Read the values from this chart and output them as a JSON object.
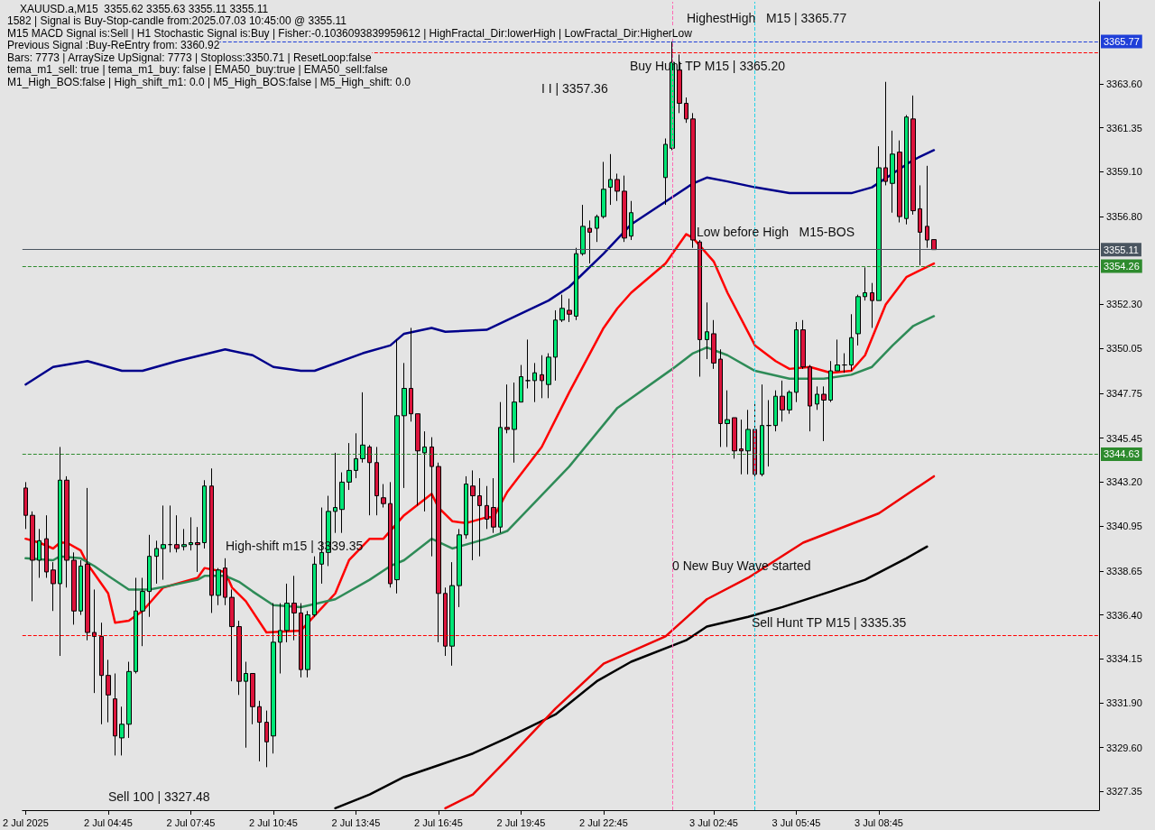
{
  "chart_data": {
    "type": "candlestick",
    "title": "XAUUSD.a,M15  3355.62 3355.63 3355.11 3355.11",
    "x": [
      "2025-07-02T01:45",
      "2025-07-02T02:00",
      "2025-07-02T02:15",
      "2025-07-02T02:30",
      "2025-07-02T02:45",
      "2025-07-02T03:00",
      "2025-07-02T03:15",
      "2025-07-02T03:30",
      "2025-07-02T03:45",
      "2025-07-02T04:00",
      "2025-07-02T04:15",
      "2025-07-02T04:30",
      "2025-07-02T04:45",
      "2025-07-02T05:00",
      "2025-07-02T05:15",
      "2025-07-02T05:30",
      "2025-07-02T05:45",
      "2025-07-02T06:00",
      "2025-07-02T06:15",
      "2025-07-02T06:30",
      "2025-07-02T06:45",
      "2025-07-02T07:00",
      "2025-07-02T07:15",
      "2025-07-02T07:30",
      "2025-07-02T07:45",
      "2025-07-02T08:00",
      "2025-07-02T08:15",
      "2025-07-02T08:30",
      "2025-07-02T08:45",
      "2025-07-02T09:00",
      "2025-07-02T09:15",
      "2025-07-02T09:30",
      "2025-07-02T09:45",
      "2025-07-02T10:00",
      "2025-07-02T10:15",
      "2025-07-02T10:30",
      "2025-07-02T10:45",
      "2025-07-02T11:00",
      "2025-07-02T11:15",
      "2025-07-02T11:30",
      "2025-07-02T11:45",
      "2025-07-02T12:00",
      "2025-07-02T12:15",
      "2025-07-02T12:30",
      "2025-07-02T12:45",
      "2025-07-02T13:00",
      "2025-07-02T13:15",
      "2025-07-02T13:30",
      "2025-07-02T13:45",
      "2025-07-02T14:00",
      "2025-07-02T14:15",
      "2025-07-02T14:30",
      "2025-07-02T14:45",
      "2025-07-02T15:00",
      "2025-07-02T15:15",
      "2025-07-02T15:30",
      "2025-07-02T15:45",
      "2025-07-02T16:00",
      "2025-07-02T16:15",
      "2025-07-02T16:30",
      "2025-07-02T16:45",
      "2025-07-02T17:00",
      "2025-07-02T17:15",
      "2025-07-02T17:30",
      "2025-07-02T17:45",
      "2025-07-02T18:00",
      "2025-07-02T18:15",
      "2025-07-02T18:30",
      "2025-07-02T18:45",
      "2025-07-02T19:00",
      "2025-07-02T19:15",
      "2025-07-02T19:30",
      "2025-07-02T19:45",
      "2025-07-02T20:00",
      "2025-07-02T20:15",
      "2025-07-02T20:30",
      "2025-07-02T20:45",
      "2025-07-02T21:00",
      "2025-07-02T21:15",
      "2025-07-02T21:30",
      "2025-07-02T21:45",
      "2025-07-02T22:00",
      "2025-07-02T22:15",
      "2025-07-02T22:30",
      "2025-07-02T22:45",
      "2025-07-02T23:00",
      "2025-07-02T23:15",
      "2025-07-02T23:30",
      "2025-07-02T23:45",
      "2025-07-03T01:00",
      "2025-07-03T01:15",
      "2025-07-03T01:30",
      "2025-07-03T01:45",
      "2025-07-03T02:00",
      "2025-07-03T02:15",
      "2025-07-03T02:30",
      "2025-07-03T02:45",
      "2025-07-03T03:00",
      "2025-07-03T03:15",
      "2025-07-03T03:30",
      "2025-07-03T03:45",
      "2025-07-03T04:00",
      "2025-07-03T04:15",
      "2025-07-03T04:30",
      "2025-07-03T04:45",
      "2025-07-03T05:00",
      "2025-07-03T05:15",
      "2025-07-03T05:30",
      "2025-07-03T05:45",
      "2025-07-03T06:00",
      "2025-07-03T06:15",
      "2025-07-03T06:30",
      "2025-07-03T06:45",
      "2025-07-03T07:00",
      "2025-07-03T07:15",
      "2025-07-03T07:30",
      "2025-07-03T07:45",
      "2025-07-03T08:00",
      "2025-07-03T08:15",
      "2025-07-03T08:30",
      "2025-07-03T08:45",
      "2025-07-03T09:00",
      "2025-07-03T09:15",
      "2025-07-03T09:30",
      "2025-07-03T09:45",
      "2025-07-03T10:00",
      "2025-07-03T10:15",
      "2025-07-03T10:30",
      "2025-07-03T10:45"
    ],
    "ohlc": [
      [
        3342.9,
        3343.2,
        3340.8,
        3341.5
      ],
      [
        3341.5,
        3341.7,
        3337.1,
        3339.2
      ],
      [
        3339.2,
        3340.8,
        3338.3,
        3340.2
      ],
      [
        3340.3,
        3341.5,
        3338.3,
        3338.6
      ],
      [
        3338.7,
        3339.1,
        3336.6,
        3338.0
      ],
      [
        3338.0,
        3345.0,
        3334.3,
        3343.3
      ],
      [
        3343.3,
        3343.5,
        3337.8,
        3339.2
      ],
      [
        3339.2,
        3339.6,
        3335.9,
        3336.6
      ],
      [
        3336.6,
        3339.2,
        3336.4,
        3338.9
      ],
      [
        3339.0,
        3342.9,
        3335.1,
        3335.5
      ],
      [
        3335.5,
        3337.7,
        3332.4,
        3335.3
      ],
      [
        3335.3,
        3336.0,
        3330.8,
        3333.3
      ],
      [
        3333.3,
        3334.1,
        3330.9,
        3332.3
      ],
      [
        3332.1,
        3333.4,
        3329.2,
        3330.2
      ],
      [
        3330.1,
        3331.7,
        3329.2,
        3330.8
      ],
      [
        3330.8,
        3334.0,
        3330.1,
        3333.5
      ],
      [
        3333.5,
        3338.3,
        3333.4,
        3336.6
      ],
      [
        3336.6,
        3338.3,
        3334.8,
        3337.6
      ],
      [
        3337.6,
        3340.5,
        3336.3,
        3339.4
      ],
      [
        3339.4,
        3340.2,
        3338.0,
        3339.8
      ],
      [
        3339.8,
        3342.0,
        3338.2,
        3340.0
      ],
      [
        3340.0,
        3342.0,
        3339.6,
        3340.0
      ],
      [
        3340.0,
        3341.5,
        3339.6,
        3339.8
      ],
      [
        3339.9,
        3340.8,
        3339.7,
        3340.0
      ],
      [
        3340.0,
        3341.4,
        3339.7,
        3340.1
      ],
      [
        3340.1,
        3340.9,
        3338.6,
        3340.0
      ],
      [
        3340.1,
        3343.3,
        3339.8,
        3343.0
      ],
      [
        3343.0,
        3343.9,
        3336.5,
        3337.4
      ],
      [
        3337.4,
        3338.8,
        3336.9,
        3338.7
      ],
      [
        3338.8,
        3339.3,
        3336.9,
        3337.3
      ],
      [
        3337.3,
        3337.7,
        3333.0,
        3335.8
      ],
      [
        3335.8,
        3336.1,
        3332.3,
        3333.0
      ],
      [
        3333.0,
        3334.0,
        3329.6,
        3333.4
      ],
      [
        3333.4,
        3333.4,
        3330.8,
        3331.7
      ],
      [
        3331.7,
        3332.0,
        3328.9,
        3330.9
      ],
      [
        3330.9,
        3331.5,
        3328.6,
        3329.9
      ],
      [
        3330.2,
        3337.0,
        3329.3,
        3335.0
      ],
      [
        3335.0,
        3337.0,
        3333.4,
        3335.6
      ],
      [
        3335.6,
        3338.0,
        3335.0,
        3337.0
      ],
      [
        3337.0,
        3338.4,
        3335.1,
        3336.5
      ],
      [
        3336.5,
        3337.0,
        3333.2,
        3333.6
      ],
      [
        3333.6,
        3336.6,
        3333.2,
        3336.4
      ],
      [
        3336.4,
        3339.4,
        3336.3,
        3339.0
      ],
      [
        3339.0,
        3341.9,
        3338.0,
        3339.6
      ],
      [
        3339.6,
        3342.5,
        3338.9,
        3341.7
      ],
      [
        3341.7,
        3344.7,
        3340.6,
        3341.9
      ],
      [
        3341.8,
        3343.7,
        3340.6,
        3343.2
      ],
      [
        3343.2,
        3345.2,
        3342.8,
        3343.8
      ],
      [
        3343.8,
        3345.7,
        3343.4,
        3344.4
      ],
      [
        3344.4,
        3347.8,
        3344.2,
        3345.1
      ],
      [
        3345.0,
        3345.1,
        3341.5,
        3344.2
      ],
      [
        3344.2,
        3345.0,
        3341.5,
        3342.5
      ],
      [
        3342.4,
        3343.1,
        3341.9,
        3342.1
      ],
      [
        3342.1,
        3343.2,
        3337.8,
        3338.0
      ],
      [
        3338.2,
        3350.5,
        3337.5,
        3346.6
      ],
      [
        3346.6,
        3349.3,
        3342.9,
        3348.0
      ],
      [
        3348.0,
        3351.1,
        3346.3,
        3346.7
      ],
      [
        3346.7,
        3346.7,
        3342.0,
        3344.8
      ],
      [
        3344.7,
        3345.8,
        3341.7,
        3345.0
      ],
      [
        3345.0,
        3345.5,
        3339.4,
        3344.0
      ],
      [
        3344.0,
        3344.2,
        3335.0,
        3337.5
      ],
      [
        3337.5,
        3337.8,
        3334.3,
        3334.8
      ],
      [
        3334.8,
        3339.1,
        3333.8,
        3337.9
      ],
      [
        3337.9,
        3340.8,
        3336.8,
        3340.5
      ],
      [
        3340.5,
        3343.5,
        3340.3,
        3343.1
      ],
      [
        3343.0,
        3343.8,
        3339.2,
        3342.5
      ],
      [
        3342.5,
        3343.4,
        3339.4,
        3342.0
      ],
      [
        3342.0,
        3343.0,
        3340.8,
        3341.3
      ],
      [
        3341.9,
        3343.4,
        3340.6,
        3340.9
      ],
      [
        3340.9,
        3347.3,
        3340.6,
        3346.0
      ],
      [
        3346.0,
        3348.2,
        3345.7,
        3345.9
      ],
      [
        3345.9,
        3348.3,
        3344.2,
        3347.3
      ],
      [
        3347.3,
        3349.2,
        3347.3,
        3348.6
      ],
      [
        3348.4,
        3350.5,
        3348.0,
        3348.4
      ],
      [
        3348.4,
        3349.3,
        3347.3,
        3348.8
      ],
      [
        3348.7,
        3349.7,
        3347.5,
        3348.4
      ],
      [
        3348.2,
        3349.8,
        3347.5,
        3349.6
      ],
      [
        3349.6,
        3352.0,
        3348.4,
        3351.5
      ],
      [
        3351.5,
        3352.8,
        3351.4,
        3352.1
      ],
      [
        3352.0,
        3352.6,
        3351.4,
        3351.8
      ],
      [
        3351.7,
        3355.2,
        3351.5,
        3354.9
      ],
      [
        3354.9,
        3357.4,
        3354.8,
        3356.3
      ],
      [
        3356.2,
        3356.6,
        3354.4,
        3356.0
      ],
      [
        3356.2,
        3356.9,
        3355.5,
        3356.8
      ],
      [
        3356.8,
        3359.6,
        3356.7,
        3358.2
      ],
      [
        3358.3,
        3360.0,
        3357.4,
        3358.7
      ],
      [
        3358.7,
        3359.0,
        3357.6,
        3358.1
      ],
      [
        3358.1,
        3358.9,
        3355.5,
        3355.7
      ],
      [
        3355.8,
        3357.6,
        3355.6,
        3357.0
      ],
      [
        3358.8,
        3360.8,
        3357.4,
        3360.5
      ],
      [
        3360.3,
        3365.77,
        3360.2,
        3364.7
      ],
      [
        3364.3,
        3365.1,
        3362.1,
        3362.6
      ],
      [
        3362.6,
        3362.9,
        3361.6,
        3361.8
      ],
      [
        3361.8,
        3362.1,
        3355.2,
        3355.6
      ],
      [
        3355.5,
        3355.6,
        3348.6,
        3350.5
      ],
      [
        3350.5,
        3352.4,
        3349.5,
        3350.9
      ],
      [
        3350.8,
        3351.5,
        3349.0,
        3349.3
      ],
      [
        3349.5,
        3350.0,
        3345.0,
        3346.2
      ],
      [
        3346.2,
        3347.9,
        3345.0,
        3346.4
      ],
      [
        3346.5,
        3346.5,
        3344.4,
        3344.8
      ],
      [
        3344.9,
        3346.4,
        3343.6,
        3344.8
      ],
      [
        3344.8,
        3346.9,
        3343.6,
        3345.9
      ],
      [
        3345.9,
        3347.3,
        3343.5,
        3343.6
      ],
      [
        3343.6,
        3348.2,
        3343.5,
        3346.1
      ],
      [
        3346.1,
        3347.4,
        3344.0,
        3346.1
      ],
      [
        3346.1,
        3347.9,
        3345.8,
        3347.6
      ],
      [
        3347.6,
        3348.4,
        3346.3,
        3346.9
      ],
      [
        3346.9,
        3347.9,
        3346.7,
        3347.8
      ],
      [
        3347.8,
        3351.4,
        3347.3,
        3351.0
      ],
      [
        3351.0,
        3351.5,
        3349.0,
        3349.1
      ],
      [
        3349.1,
        3349.2,
        3345.8,
        3347.1
      ],
      [
        3347.2,
        3348.1,
        3346.9,
        3347.7
      ],
      [
        3347.7,
        3348.1,
        3345.3,
        3347.4
      ],
      [
        3347.4,
        3349.4,
        3347.3,
        3348.9
      ],
      [
        3348.9,
        3350.5,
        3348.9,
        3349.2
      ],
      [
        3349.2,
        3349.8,
        3348.8,
        3349.2
      ],
      [
        3349.2,
        3351.8,
        3348.9,
        3350.6
      ],
      [
        3350.8,
        3352.8,
        3350.2,
        3352.7
      ],
      [
        3352.7,
        3354.2,
        3352.5,
        3352.9
      ],
      [
        3352.9,
        3353.4,
        3351.1,
        3352.5
      ],
      [
        3352.5,
        3360.4,
        3352.5,
        3359.3
      ],
      [
        3359.3,
        3363.7,
        3358.4,
        3358.6
      ],
      [
        3358.5,
        3361.2,
        3357.0,
        3360.0
      ],
      [
        3360.1,
        3360.7,
        3356.5,
        3356.8
      ],
      [
        3356.7,
        3362.0,
        3356.4,
        3361.9
      ],
      [
        3361.8,
        3363.0,
        3356.9,
        3357.1
      ],
      [
        3357.2,
        3358.4,
        3354.3,
        3356.0
      ],
      [
        3356.3,
        3359.4,
        3355.2,
        3355.6
      ],
      [
        3355.62,
        3355.63,
        3355.11,
        3355.11
      ]
    ],
    "series": [
      {
        "type": "line",
        "color": "#00008b",
        "x": [
          "2025-07-02T01:45",
          "2025-07-02T02:45",
          "2025-07-02T04:00",
          "2025-07-02T05:15",
          "2025-07-02T06:00",
          "2025-07-02T07:15",
          "2025-07-02T09:00",
          "2025-07-02T10:00",
          "2025-07-02T10:45",
          "2025-07-02T11:45",
          "2025-07-02T12:15",
          "2025-07-02T14:00",
          "2025-07-02T15:00",
          "2025-07-02T15:30",
          "2025-07-02T16:30",
          "2025-07-02T17:00",
          "2025-07-02T18:30",
          "2025-07-02T20:45",
          "2025-07-02T21:30",
          "2025-07-02T22:45",
          "2025-07-02T23:45",
          "2025-07-03T02:00",
          "2025-07-03T02:30",
          "2025-07-03T03:15",
          "2025-07-03T04:15",
          "2025-07-03T05:30",
          "2025-07-03T06:30",
          "2025-07-03T07:45",
          "2025-07-03T08:30",
          "2025-07-03T09:15",
          "2025-07-03T10:00",
          "2025-07-03T10:45"
        ],
        "values": [
          3348.2,
          3349.1,
          3349.4,
          3348.9,
          3348.9,
          3349.4,
          3350.0,
          3349.7,
          3349.1,
          3348.9,
          3348.9,
          3349.8,
          3350.2,
          3350.8,
          3351.1,
          3350.9,
          3351.0,
          3352.5,
          3353.2,
          3354.9,
          3356.4,
          3358.5,
          3358.8,
          3358.6,
          3358.3,
          3358.0,
          3358.0,
          3358.0,
          3358.3,
          3359.0,
          3359.7,
          3360.2
        ]
      },
      {
        "type": "line",
        "color": "#ff0000",
        "x": [
          "2025-07-02T01:45",
          "2025-07-02T02:15",
          "2025-07-02T02:45",
          "2025-07-02T03:00",
          "2025-07-02T03:15",
          "2025-07-02T03:45",
          "2025-07-02T04:00",
          "2025-07-02T04:45",
          "2025-07-02T05:00",
          "2025-07-02T05:30",
          "2025-07-02T06:00",
          "2025-07-02T06:45",
          "2025-07-02T08:00",
          "2025-07-02T08:15",
          "2025-07-02T09:00",
          "2025-07-02T09:15",
          "2025-07-02T09:45",
          "2025-07-02T10:30",
          "2025-07-02T11:45",
          "2025-07-02T13:00",
          "2025-07-02T13:30",
          "2025-07-02T14:15",
          "2025-07-02T14:45",
          "2025-07-02T15:30",
          "2025-07-02T16:30",
          "2025-07-02T16:45",
          "2025-07-02T17:15",
          "2025-07-02T17:45",
          "2025-07-02T18:30",
          "2025-07-02T18:45",
          "2025-07-02T19:15",
          "2025-07-02T20:30",
          "2025-07-02T21:30",
          "2025-07-02T22:45",
          "2025-07-02T23:15",
          "2025-07-02T23:45",
          "2025-07-03T01:00",
          "2025-07-03T01:45",
          "2025-07-03T02:00",
          "2025-07-03T02:45",
          "2025-07-03T03:15",
          "2025-07-03T04:15",
          "2025-07-03T05:00",
          "2025-07-03T05:30",
          "2025-07-03T06:15",
          "2025-07-03T07:00",
          "2025-07-03T07:45",
          "2025-07-03T08:15",
          "2025-07-03T09:00",
          "2025-07-03T09:45",
          "2025-07-03T10:45"
        ],
        "values": [
          3340.3,
          3340.1,
          3339.8,
          3340.1,
          3340.1,
          3339.7,
          3339.0,
          3337.5,
          3336.0,
          3336.1,
          3336.6,
          3337.8,
          3338.3,
          3338.8,
          3338.6,
          3337.8,
          3337.1,
          3335.5,
          3335.6,
          3337.5,
          3339.2,
          3340.3,
          3340.3,
          3341.5,
          3342.6,
          3341.9,
          3341.2,
          3341.1,
          3341.4,
          3341.4,
          3342.7,
          3345.0,
          3347.8,
          3351.1,
          3352.1,
          3352.9,
          3354.4,
          3355.9,
          3355.7,
          3354.5,
          3352.9,
          3350.2,
          3349.4,
          3349.0,
          3349.1,
          3348.8,
          3348.9,
          3349.7,
          3352.3,
          3353.7,
          3354.4
        ]
      },
      {
        "type": "line",
        "color": "#2e8b57",
        "x": [
          "2025-07-02T01:45",
          "2025-07-02T02:45",
          "2025-07-02T03:00",
          "2025-07-02T03:45",
          "2025-07-02T04:15",
          "2025-07-02T04:45",
          "2025-07-02T05:30",
          "2025-07-02T06:15",
          "2025-07-02T07:00",
          "2025-07-02T08:00",
          "2025-07-02T08:15",
          "2025-07-02T09:00",
          "2025-07-02T09:30",
          "2025-07-02T10:00",
          "2025-07-02T10:45",
          "2025-07-02T11:45",
          "2025-07-02T13:00",
          "2025-07-02T14:15",
          "2025-07-02T15:00",
          "2025-07-02T15:30",
          "2025-07-02T16:30",
          "2025-07-02T17:15",
          "2025-07-02T18:30",
          "2025-07-02T19:15",
          "2025-07-02T21:30",
          "2025-07-02T23:15",
          "2025-07-03T01:15",
          "2025-07-03T02:00",
          "2025-07-03T02:30",
          "2025-07-03T03:15",
          "2025-07-03T04:15",
          "2025-07-03T05:30",
          "2025-07-03T06:45",
          "2025-07-03T07:45",
          "2025-07-03T08:30",
          "2025-07-03T09:15",
          "2025-07-03T10:00",
          "2025-07-03T10:45"
        ],
        "values": [
          3339.3,
          3339.2,
          3339.4,
          3339.3,
          3338.9,
          3338.4,
          3337.7,
          3337.7,
          3337.9,
          3338.2,
          3338.4,
          3338.4,
          3338.1,
          3337.6,
          3336.9,
          3336.8,
          3337.2,
          3338.2,
          3338.9,
          3339.2,
          3340.3,
          3339.8,
          3340.3,
          3340.7,
          3344.0,
          3347.0,
          3349.0,
          3349.8,
          3350.1,
          3349.7,
          3348.9,
          3348.5,
          3348.5,
          3348.7,
          3349.1,
          3350.2,
          3351.2,
          3351.7
        ]
      },
      {
        "type": "line",
        "color": "#000000",
        "x": [
          "2025-07-02T13:00",
          "2025-07-02T14:15",
          "2025-07-02T15:30",
          "2025-07-02T16:45",
          "2025-07-02T18:00",
          "2025-07-02T19:15",
          "2025-07-02T21:00",
          "2025-07-02T22:30",
          "2025-07-02T23:45",
          "2025-07-03T01:45",
          "2025-07-03T02:30",
          "2025-07-03T04:00",
          "2025-07-03T05:15",
          "2025-07-03T07:00",
          "2025-07-03T08:15",
          "2025-07-03T09:45",
          "2025-07-03T10:30"
        ],
        "values": [
          3326.5,
          3327.2,
          3328.1,
          3328.7,
          3329.3,
          3330.1,
          3331.3,
          3333.0,
          3334.0,
          3335.1,
          3335.8,
          3336.3,
          3336.8,
          3337.6,
          3338.2,
          3339.3,
          3339.9
        ]
      },
      {
        "type": "line",
        "color": "#ee0000",
        "x": [
          "2025-07-02T17:00",
          "2025-07-02T18:00",
          "2025-07-02T19:15",
          "2025-07-02T21:00",
          "2025-07-02T22:45",
          "2025-07-03T01:00",
          "2025-07-03T02:30",
          "2025-07-03T04:00",
          "2025-07-03T06:00",
          "2025-07-03T08:45",
          "2025-07-03T10:45"
        ],
        "values": [
          3326.5,
          3327.2,
          3329.0,
          3331.6,
          3333.9,
          3335.3,
          3337.2,
          3338.3,
          3340.1,
          3341.6,
          3343.5
        ]
      }
    ],
    "marker": "none",
    "line_style": "solid",
    "grid": false,
    "xlim": [
      "2025-07-02T01:38",
      "2025-07-03T16:45"
    ],
    "xticks": [
      {
        "value": "2025-07-02T01:45",
        "label": "2 Jul 2025"
      },
      {
        "value": "2025-07-02T04:45",
        "label": "2 Jul 04:45"
      },
      {
        "value": "2025-07-02T07:45",
        "label": "2 Jul 07:45"
      },
      {
        "value": "2025-07-02T10:45",
        "label": "2 Jul 10:45"
      },
      {
        "value": "2025-07-02T13:45",
        "label": "2 Jul 13:45"
      },
      {
        "value": "2025-07-02T16:45",
        "label": "2 Jul 16:45"
      },
      {
        "value": "2025-07-02T19:45",
        "label": "2 Jul 19:45"
      },
      {
        "value": "2025-07-02T22:45",
        "label": "2 Jul 22:45"
      },
      {
        "value": "2025-07-03T02:45",
        "label": "3 Jul 02:45"
      },
      {
        "value": "2025-07-03T05:45",
        "label": "3 Jul 05:45"
      },
      {
        "value": "2025-07-03T08:45",
        "label": "3 Jul 08:45"
      }
    ],
    "ylim": [
      3326.4,
      3367.8
    ],
    "yticks": [
      3327.35,
      {
        "value": 3329.6,
        "label": "3329.60"
      },
      {
        "value": 3331.9,
        "label": "3331.90"
      },
      3334.15,
      {
        "value": 3336.4,
        "label": "3336.40"
      },
      3338.65,
      3340.95,
      {
        "value": 3343.2,
        "label": "3343.20"
      },
      3345.45,
      3347.75,
      3350.05,
      {
        "value": 3352.3,
        "label": "3352.30"
      },
      {
        "value": 3356.8,
        "label": "3356.80"
      },
      {
        "value": 3359.1,
        "label": "3359.10"
      },
      3361.35,
      {
        "value": 3363.6,
        "label": "3363.60"
      }
    ],
    "ref_lines": [
      {
        "axis": "y",
        "value": 3365.77,
        "label": "3365.77",
        "color": "#1f3fd8",
        "line_style": "dashed"
      },
      {
        "axis": "y",
        "value": 3365.2,
        "color": "#ff0000",
        "line_style": "dashed"
      },
      {
        "axis": "y",
        "value": 3355.11,
        "label": "3355.11",
        "color": "#4a5560",
        "line_style": "solid"
      },
      {
        "axis": "y",
        "value": 3354.26,
        "label": "3354.26",
        "color": "#2e8b2e",
        "line_style": "dashed"
      },
      {
        "axis": "y",
        "value": 3344.63,
        "label": "3344.63",
        "color": "#2e8b2e",
        "line_style": "dashed"
      },
      {
        "axis": "y",
        "value": 3335.35,
        "color": "#ff0000",
        "line_style": "dashed"
      },
      {
        "axis": "x",
        "value": "2025-07-03T01:15",
        "color": "#ff69b4",
        "line_style": "dashed"
      },
      {
        "axis": "x",
        "value": "2025-07-03T04:15",
        "color": "#22d3e6",
        "line_style": "dashed"
      }
    ],
    "annotations": [
      "1582 | Signal is Buy-Stop-candle from:2025.07.03 10:45:00 @ 3355.11",
      "M15 MACD Signal is:Sell | H1 Stochastic Signal is:Buy | Fisher:-0.1036093839959612 | HighFractal_Dir:lowerHigh | LowFractal_Dir:HigherLow",
      "Previous Signal :Buy-ReEntry from: 3360.92",
      "Bars: 7773 | ArraySize UpSignal: 7773 | Stoploss:3350.71 | ResetLoop:false",
      "tema_m1_sell: true | tema_m1_buy: false | EMA50_buy:true | EMA50_sell:false",
      "M1_High_BOS:false | High_shift_m1: 0.0 | M5_High_BOS:false | M5_High_shift: 0.0",
      "HighestHigh   M15 | 3365.77",
      "Buy Hunt TP M15 | 3365.20",
      "I I | 3357.36",
      "Low before High   M15-BOS",
      "High-shift m15 | 3339.35",
      "0 New Buy Wave started",
      "Sell Hunt TP M15 | 3335.35",
      "Sell 100 | 3327.48"
    ]
  }
}
